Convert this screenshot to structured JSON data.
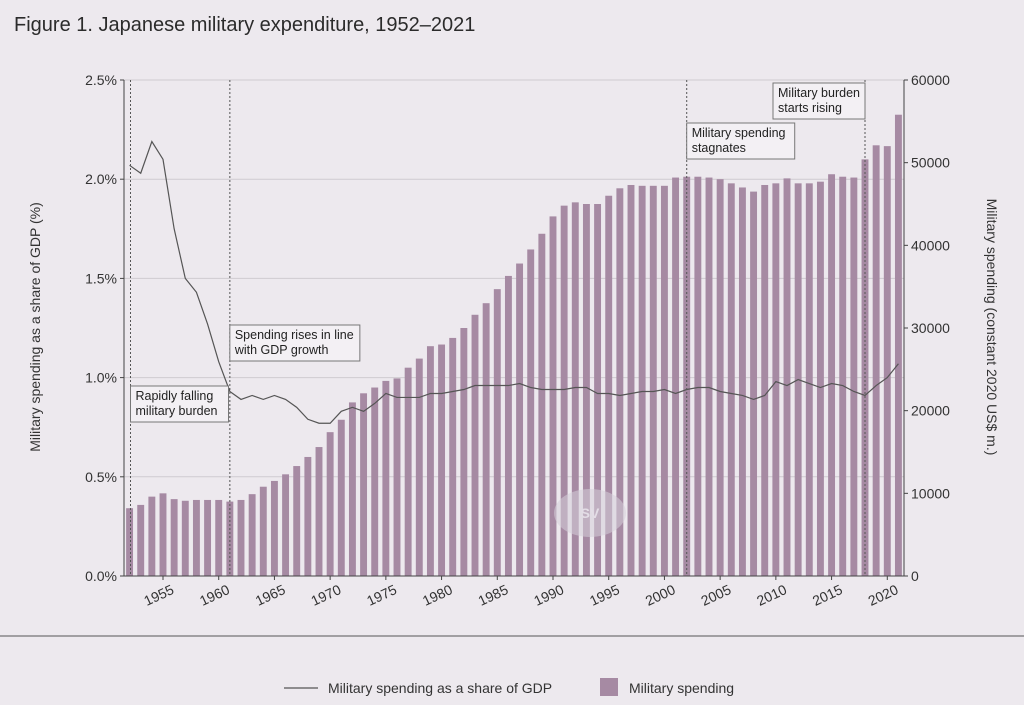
{
  "title": "Figure 1. Japanese military expenditure, 1952–2021",
  "watermark": "SV",
  "legend": {
    "line_label": "Military spending as a share of GDP",
    "bar_label": "Military spending"
  },
  "colors": {
    "background": "#ede9ee",
    "bar": "#a68aa3",
    "line": "#555555",
    "grid": "#cfcbd0",
    "axis": "#444444"
  },
  "chart_data": {
    "type": "bar+line",
    "title": "Figure 1. Japanese military expenditure, 1952–2021",
    "x": [
      1952,
      1953,
      1954,
      1955,
      1956,
      1957,
      1958,
      1959,
      1960,
      1961,
      1962,
      1963,
      1964,
      1965,
      1966,
      1967,
      1968,
      1969,
      1970,
      1971,
      1972,
      1973,
      1974,
      1975,
      1976,
      1977,
      1978,
      1979,
      1980,
      1981,
      1982,
      1983,
      1984,
      1985,
      1986,
      1987,
      1988,
      1989,
      1990,
      1991,
      1992,
      1993,
      1994,
      1995,
      1996,
      1997,
      1998,
      1999,
      2000,
      2001,
      2002,
      2003,
      2004,
      2005,
      2006,
      2007,
      2008,
      2009,
      2010,
      2011,
      2012,
      2013,
      2014,
      2015,
      2016,
      2017,
      2018,
      2019,
      2020,
      2021
    ],
    "x_ticks": [
      "1955",
      "1960",
      "1965",
      "1970",
      "1975",
      "1980",
      "1985",
      "1990",
      "1995",
      "2000",
      "2005",
      "2010",
      "2015",
      "2020"
    ],
    "series": [
      {
        "name": "Military spending",
        "type": "bar",
        "axis": "right",
        "values": [
          8200,
          8600,
          9600,
          10000,
          9300,
          9100,
          9200,
          9200,
          9200,
          9000,
          9200,
          9900,
          10800,
          11500,
          12300,
          13300,
          14400,
          15600,
          17400,
          18900,
          21000,
          22100,
          22800,
          23600,
          23900,
          25200,
          26300,
          27800,
          28000,
          28800,
          30000,
          31600,
          33000,
          34700,
          36300,
          37800,
          39500,
          41400,
          43500,
          44800,
          45200,
          45000,
          45000,
          46000,
          46900,
          47300,
          47200,
          47200,
          47200,
          48200,
          48300,
          48300,
          48200,
          48000,
          47500,
          47000,
          46500,
          47300,
          47500,
          48100,
          47500,
          47500,
          47700,
          48600,
          48300,
          48200,
          50400,
          52100,
          52000,
          55800
        ]
      },
      {
        "name": "Military spending as a share of GDP",
        "type": "line",
        "axis": "left",
        "values": [
          2.07,
          2.03,
          2.19,
          2.1,
          1.75,
          1.5,
          1.43,
          1.27,
          1.08,
          0.93,
          0.89,
          0.91,
          0.89,
          0.91,
          0.89,
          0.85,
          0.79,
          0.77,
          0.77,
          0.83,
          0.85,
          0.83,
          0.87,
          0.92,
          0.9,
          0.9,
          0.9,
          0.92,
          0.92,
          0.93,
          0.94,
          0.96,
          0.96,
          0.96,
          0.96,
          0.97,
          0.95,
          0.94,
          0.94,
          0.94,
          0.95,
          0.95,
          0.92,
          0.92,
          0.91,
          0.92,
          0.93,
          0.93,
          0.94,
          0.92,
          0.94,
          0.95,
          0.95,
          0.93,
          0.92,
          0.91,
          0.89,
          0.91,
          0.98,
          0.96,
          0.99,
          0.97,
          0.95,
          0.97,
          0.96,
          0.93,
          0.91,
          0.96,
          1.0,
          1.07
        ]
      }
    ],
    "ylabel_left": "Military spending as a share of GDP (%)",
    "ylabel_right": "Military spending (constant 2020 US$ m.)",
    "ylim_left": [
      0,
      2.5
    ],
    "ylim_right": [
      0,
      60000
    ],
    "yticks_left": [
      "0.0%",
      "0.5%",
      "1.0%",
      "1.5%",
      "2.0%",
      "2.5%"
    ],
    "yticks_left_values": [
      0,
      0.5,
      1.0,
      1.5,
      2.0,
      2.5
    ],
    "yticks_right": [
      "0",
      "10000",
      "20000",
      "30000",
      "40000",
      "50000",
      "60000"
    ],
    "yticks_right_values": [
      0,
      10000,
      20000,
      30000,
      40000,
      50000,
      60000
    ],
    "grid": true,
    "annotations": [
      {
        "year": 1952,
        "lines": [
          "Rapidly falling",
          "military burden"
        ]
      },
      {
        "year": 1961,
        "lines": [
          "Spending rises in line",
          "with GDP growth"
        ]
      },
      {
        "year": 2002,
        "lines": [
          "Military spending",
          "stagnates"
        ]
      },
      {
        "year": 2018,
        "lines": [
          "Military burden",
          "starts rising"
        ]
      }
    ]
  }
}
